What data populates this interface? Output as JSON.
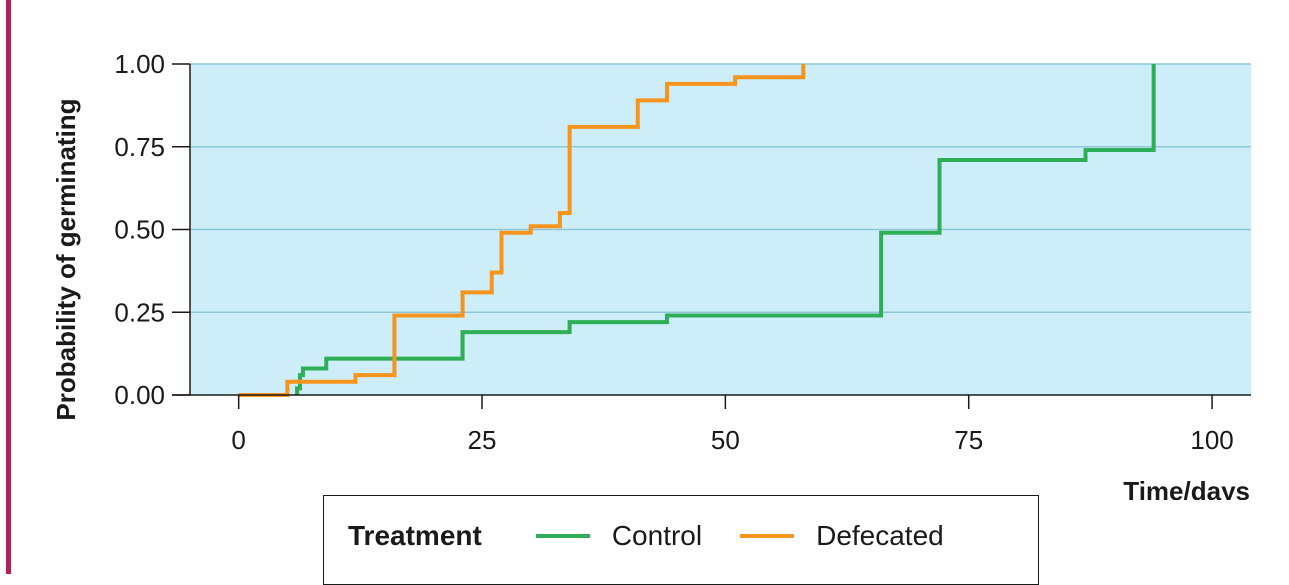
{
  "chart_data": {
    "type": "line",
    "subtype": "step",
    "xlabel": "Time/days",
    "ylabel": "Probability of germinating",
    "xlim": [
      -5,
      104
    ],
    "ylim": [
      0,
      1
    ],
    "xticks": [
      0,
      25,
      50,
      75,
      100
    ],
    "xtick_labels": [
      "0",
      "25",
      "50",
      "75",
      "100"
    ],
    "yticks": [
      0,
      0.25,
      0.5,
      0.75,
      1
    ],
    "ytick_labels": [
      "0.00",
      "0.25",
      "0.50",
      "0.75",
      "1.00"
    ],
    "grid": "horizontal",
    "plot_background": "#cdeef8",
    "legend": {
      "title": "Treatment",
      "placement": "bottom",
      "entries": [
        "Control",
        "Defecated"
      ]
    },
    "series": [
      {
        "name": "Control",
        "color": "#2eae57",
        "x": [
          6,
          6.3,
          6.6,
          9,
          23,
          34,
          44,
          66,
          72,
          87,
          94
        ],
        "y": [
          0.02,
          0.06,
          0.08,
          0.11,
          0.19,
          0.22,
          0.24,
          0.49,
          0.71,
          0.74,
          1.0
        ]
      },
      {
        "name": "Defecated",
        "color": "#f7941d",
        "x": [
          0,
          5,
          12,
          16,
          23,
          26,
          27,
          30,
          33,
          34,
          41,
          44,
          51,
          58
        ],
        "y": [
          0.0,
          0.04,
          0.06,
          0.24,
          0.31,
          0.37,
          0.49,
          0.51,
          0.55,
          0.81,
          0.89,
          0.94,
          0.96,
          1.0
        ]
      }
    ]
  }
}
